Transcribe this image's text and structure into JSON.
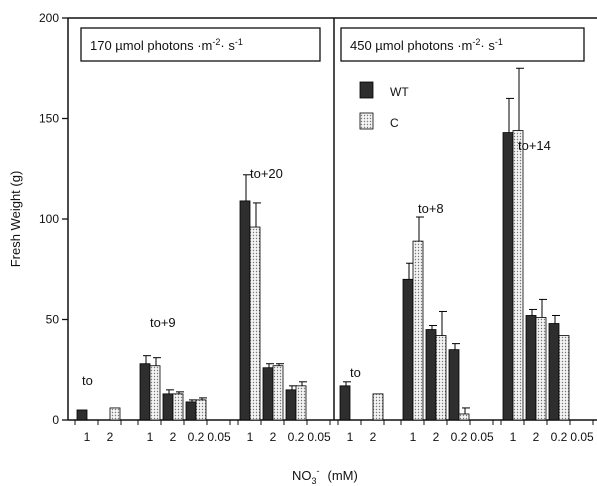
{
  "chart_data": {
    "type": "bar",
    "ylabel": "Fresh Weight (g)",
    "xlabel_main": "NO",
    "xlabel_sub": "3",
    "xlabel_sup": "-",
    "xlabel_unit": "(mM)",
    "ylim": [
      0,
      200
    ],
    "yticks": [
      "0",
      "50",
      "100",
      "150",
      "200"
    ],
    "legend": [
      {
        "name": "WT",
        "fill": "#2e2e2e"
      },
      {
        "name": "C",
        "fill": "#dcdcdc"
      }
    ],
    "panels": [
      {
        "title_main": "170 µmol photons ·m",
        "title_sup1": "-2",
        "title_mid": "· s",
        "title_sup2": "-1",
        "groups": [
          {
            "time_label": "to",
            "categories": [
              "1",
              "2"
            ],
            "wt": [
              5,
              null
            ],
            "c": [
              null,
              6
            ],
            "wt_err": [
              0,
              null
            ],
            "c_err": [
              null,
              0
            ]
          },
          {
            "time_label": "to+9",
            "categories": [
              "1",
              "2",
              "0.2",
              "0.05"
            ],
            "wt": [
              28,
              13,
              9,
              null
            ],
            "c": [
              27,
              13,
              10,
              null
            ],
            "wt_err": [
              4,
              2,
              1,
              null
            ],
            "c_err": [
              4,
              1,
              1,
              null
            ]
          },
          {
            "time_label": "to+20",
            "categories": [
              "1",
              "2",
              "0.2",
              "0.05"
            ],
            "wt": [
              109,
              26,
              15,
              null
            ],
            "c": [
              96,
              27,
              17,
              null
            ],
            "wt_err": [
              13,
              2,
              2,
              null
            ],
            "c_err": [
              12,
              1,
              2,
              null
            ]
          }
        ]
      },
      {
        "title_main": "450 µmol photons ·m",
        "title_sup1": "-2",
        "title_mid": "· s",
        "title_sup2": "-1",
        "groups": [
          {
            "time_label": "to",
            "categories": [
              "1",
              "2"
            ],
            "wt": [
              17,
              null
            ],
            "c": [
              null,
              13
            ],
            "wt_err": [
              2,
              null
            ],
            "c_err": [
              null,
              0
            ]
          },
          {
            "time_label": "to+8",
            "categories": [
              "1",
              "2",
              "0.2",
              "0.05"
            ],
            "wt": [
              70,
              45,
              35,
              null
            ],
            "c": [
              89,
              42,
              3,
              null
            ],
            "wt_err": [
              8,
              2,
              3,
              null
            ],
            "c_err": [
              12,
              12,
              3,
              null
            ]
          },
          {
            "time_label": "to+14",
            "categories": [
              "1",
              "2",
              "0.2",
              "0.05"
            ],
            "wt": [
              143,
              52,
              48,
              null
            ],
            "c": [
              144,
              51,
              42,
              null
            ],
            "wt_err": [
              17,
              3,
              4,
              null
            ],
            "c_err": [
              31,
              9,
              0,
              null
            ]
          }
        ]
      }
    ]
  }
}
